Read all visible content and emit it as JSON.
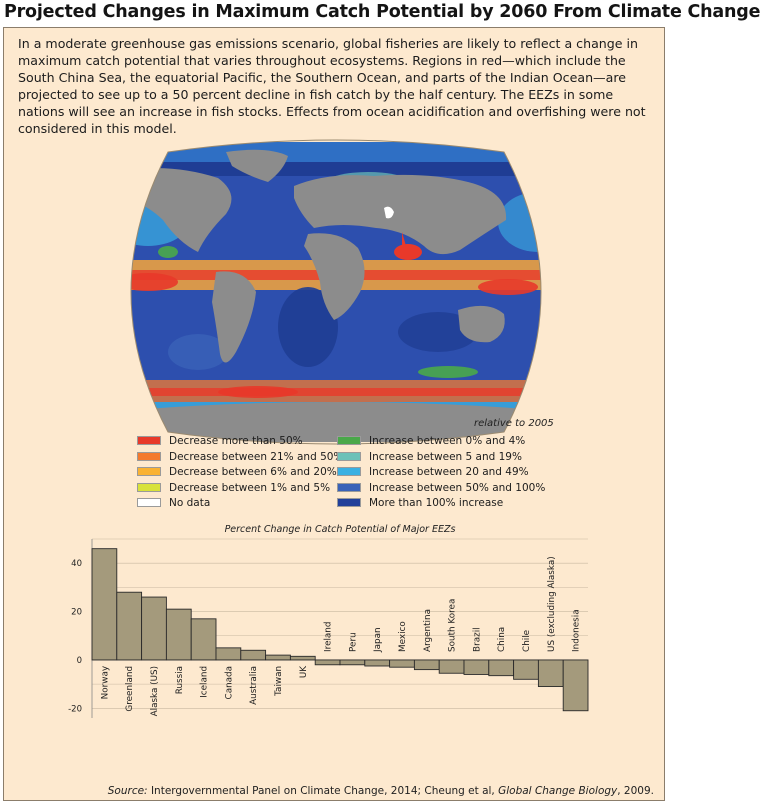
{
  "header": {
    "title": "Projected Changes in Maximum Catch Potential by 2060 From Climate Change"
  },
  "intro": {
    "text": "In a moderate greenhouse gas emissions scenario, global fisheries are likely to reflect a change in maximum catch potential that varies throughout ecosystems.  Regions in red—which include the South China Sea, the equatorial Pacific, the Southern Ocean, and parts of the Indian Ocean—are projected to see up to a 50 percent decline in fish catch by the half century.  The EEZs in some nations will see an increase in fish stocks.  Effects from ocean acidification and overfishing were not considered in this model."
  },
  "map": {
    "note": "relative to 2005"
  },
  "legend": {
    "items": [
      {
        "label": "Decrease more than 50%",
        "color": "#e8392a"
      },
      {
        "label": "Decrease between 21% and 50%",
        "color": "#f47a2e"
      },
      {
        "label": "Decrease between 6% and 20%",
        "color": "#f9b233"
      },
      {
        "label": "Decrease between 1% and 5%",
        "color": "#d8e23a"
      },
      {
        "label": "No data",
        "color": "#ffffff"
      },
      {
        "label": "Increase between 0% and 4%",
        "color": "#4aa84a"
      },
      {
        "label": "Increase between 5 and 19%",
        "color": "#6cc1b8"
      },
      {
        "label": "Increase between 20 and 49%",
        "color": "#3ab0e2"
      },
      {
        "label": "Increase between 50% and 100%",
        "color": "#3a62b8"
      },
      {
        "label": "More than 100% increase",
        "color": "#22409a"
      }
    ]
  },
  "chart_data": {
    "type": "bar",
    "title": "Percent Change in Catch Potential of Major EEZs",
    "categories": [
      "Norway",
      "Greenland",
      "Alaska (US)",
      "Russia",
      "Iceland",
      "Canada",
      "Australia",
      "Taiwan",
      "UK",
      "Ireland",
      "Peru",
      "Japan",
      "Mexico",
      "Argentina",
      "South Korea",
      "Brazil",
      "China",
      "Chile",
      "US (excluding Alaska)",
      "Indonesia"
    ],
    "values": [
      46,
      28,
      26,
      21,
      17,
      5,
      4,
      2,
      1.5,
      -2,
      -2,
      -2.5,
      -3,
      -4,
      -5.5,
      -6,
      -6.5,
      -8,
      -11,
      -21
    ],
    "ylim": [
      -24,
      50
    ],
    "yticks": [
      40,
      20,
      0,
      -20
    ],
    "bar_color": "#a49a7c",
    "grid": true
  },
  "source": {
    "label": "Source:",
    "text": " Intergovernmental Panel on Climate Change, 2014; Cheung et al, ",
    "journal": "Global Change Biology",
    "year": ", 2009."
  }
}
